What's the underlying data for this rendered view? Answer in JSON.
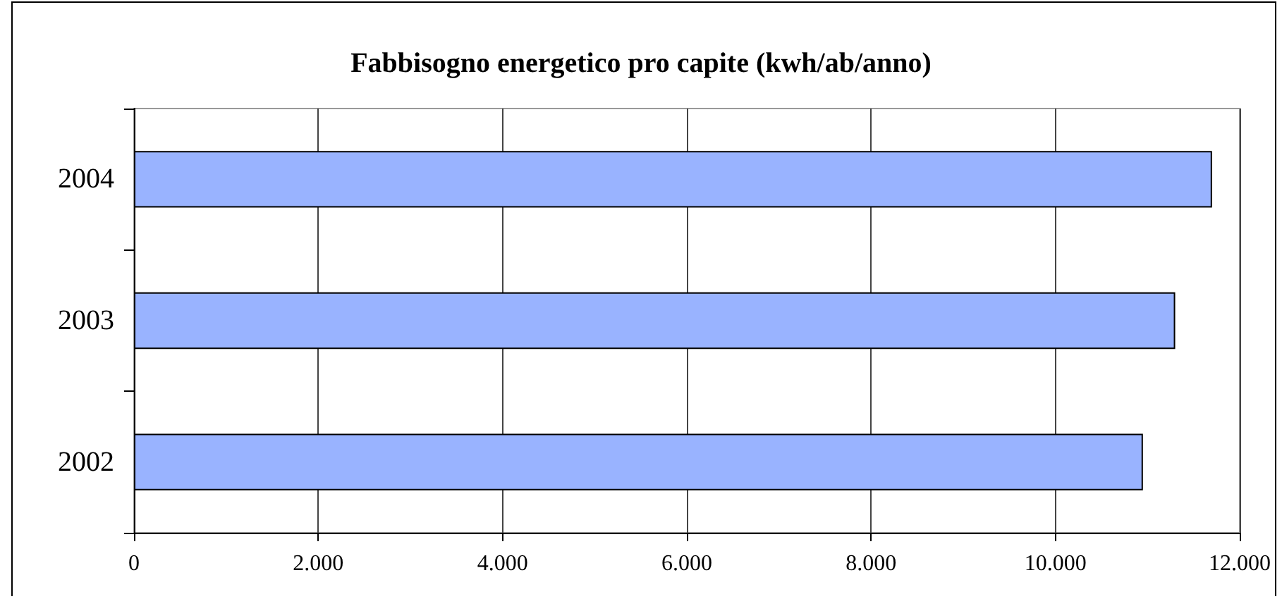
{
  "chart_data": {
    "type": "bar",
    "orientation": "horizontal",
    "title": "Fabbisogno energetico pro capite (kwh/ab/anno)",
    "categories": [
      "2004",
      "2003",
      "2002"
    ],
    "values": [
      11700,
      11300,
      10950
    ],
    "color": "#99b3ff",
    "xlim": [
      0,
      12000
    ],
    "xticks": [
      0,
      {
        "value": 2000,
        "label": "2.000"
      },
      {
        "value": 4000,
        "label": "4.000"
      },
      {
        "value": 6000,
        "label": "6.000"
      },
      {
        "value": 8000,
        "label": "8.000"
      },
      {
        "value": 10000,
        "label": "10.000"
      },
      {
        "value": 12000,
        "label": "12.000"
      }
    ],
    "grid": "x"
  }
}
